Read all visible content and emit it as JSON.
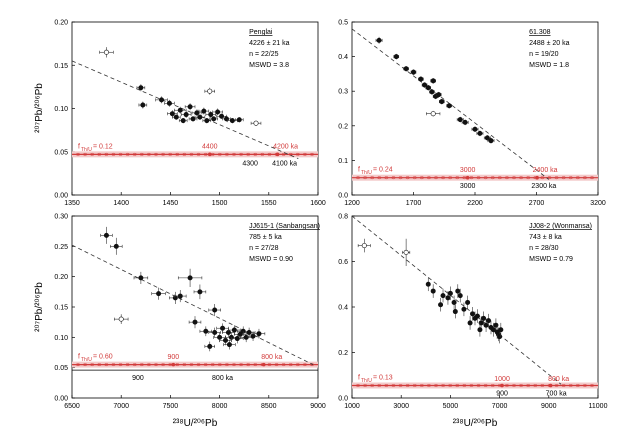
{
  "figure": {
    "ylabel": "²⁰⁷Pb/²⁰⁶Pb",
    "xlabel": "²³⁸U/²⁰⁶Pb",
    "colors": {
      "axis": "#000000",
      "data": "#111111",
      "hollow": "#ffffff",
      "concordia": "#d23b3b",
      "concordia_band": "#f3c9c9",
      "regression": "#333333"
    }
  },
  "chart_data": [
    {
      "id": "penglai",
      "type": "scatter",
      "xlim": [
        1350,
        1600
      ],
      "ylim": [
        0,
        0.2
      ],
      "xticks": [
        "1350",
        "1400",
        "1450",
        "1500",
        "1550",
        "1600"
      ],
      "yticks": [
        "0.00",
        "0.05",
        "0.10",
        "0.15",
        "0.20"
      ],
      "info": [
        "Penglai",
        "4226 ± 21 ka",
        "n = 22/25",
        "MSWD = 3.8"
      ],
      "f_label": "f",
      "f_sub": "Th/U",
      "f_value": "= 0.12",
      "red_labels": [
        {
          "text": "4400",
          "x": 1490,
          "y": 0.054
        },
        {
          "text": "4200 ka",
          "x": 1567,
          "y": 0.054
        }
      ],
      "black_labels": [
        {
          "text": "4300",
          "x": 1531,
          "y": 0.034
        },
        {
          "text": "4100 ka",
          "x": 1566,
          "y": 0.034
        }
      ],
      "concordia": {
        "y": 0.047,
        "x_start": 1350,
        "x_end": 1600
      },
      "regression": {
        "x1": 1350,
        "y1": 0.155,
        "x2": 1580,
        "y2": 0.042
      },
      "filled_points": [
        {
          "x": 1420,
          "y": 0.124,
          "ex": 4,
          "ey": 0.004
        },
        {
          "x": 1422,
          "y": 0.104,
          "ex": 4,
          "ey": 0.004
        },
        {
          "x": 1441,
          "y": 0.11,
          "ex": 6,
          "ey": 0.004
        },
        {
          "x": 1449,
          "y": 0.106,
          "ex": 5,
          "ey": 0.004
        },
        {
          "x": 1452,
          "y": 0.094,
          "ex": 5,
          "ey": 0.004
        },
        {
          "x": 1456,
          "y": 0.09,
          "ex": 4,
          "ey": 0.003
        },
        {
          "x": 1460,
          "y": 0.098,
          "ex": 6,
          "ey": 0.004
        },
        {
          "x": 1463,
          "y": 0.086,
          "ex": 4,
          "ey": 0.003
        },
        {
          "x": 1466,
          "y": 0.093,
          "ex": 5,
          "ey": 0.004
        },
        {
          "x": 1470,
          "y": 0.102,
          "ex": 5,
          "ey": 0.004
        },
        {
          "x": 1473,
          "y": 0.088,
          "ex": 4,
          "ey": 0.003
        },
        {
          "x": 1477,
          "y": 0.095,
          "ex": 5,
          "ey": 0.004
        },
        {
          "x": 1480,
          "y": 0.09,
          "ex": 5,
          "ey": 0.003
        },
        {
          "x": 1484,
          "y": 0.097,
          "ex": 5,
          "ey": 0.004
        },
        {
          "x": 1487,
          "y": 0.086,
          "ex": 4,
          "ey": 0.003
        },
        {
          "x": 1491,
          "y": 0.093,
          "ex": 5,
          "ey": 0.004
        },
        {
          "x": 1494,
          "y": 0.088,
          "ex": 4,
          "ey": 0.003
        },
        {
          "x": 1498,
          "y": 0.096,
          "ex": 5,
          "ey": 0.004
        },
        {
          "x": 1502,
          "y": 0.091,
          "ex": 5,
          "ey": 0.003
        },
        {
          "x": 1507,
          "y": 0.088,
          "ex": 4,
          "ey": 0.003
        },
        {
          "x": 1513,
          "y": 0.086,
          "ex": 5,
          "ey": 0.003
        },
        {
          "x": 1520,
          "y": 0.087,
          "ex": 4,
          "ey": 0.003
        }
      ],
      "hollow_points": [
        {
          "x": 1385,
          "y": 0.165,
          "ex": 7,
          "ey": 0.006
        },
        {
          "x": 1490,
          "y": 0.12,
          "ex": 5,
          "ey": 0.004
        },
        {
          "x": 1537,
          "y": 0.083,
          "ex": 5,
          "ey": 0.003
        }
      ]
    },
    {
      "id": "sixty-one-308",
      "type": "scatter",
      "xlim": [
        1200,
        3200
      ],
      "ylim": [
        0,
        0.5
      ],
      "xticks": [
        "1200",
        "1700",
        "2200",
        "2700",
        "3200"
      ],
      "yticks": [
        "0.0",
        "0.1",
        "0.2",
        "0.3",
        "0.4",
        "0.5"
      ],
      "info": [
        "61.308",
        "2488 ± 20 ka",
        "n = 19/20",
        "MSWD = 1.8"
      ],
      "f_label": "f",
      "f_sub": "Th/U",
      "f_value": "= 0.24",
      "red_labels": [
        {
          "text": "3000",
          "x": 2140,
          "y": 0.066
        },
        {
          "text": "2400 ka",
          "x": 2770,
          "y": 0.066
        }
      ],
      "black_labels": [
        {
          "text": "3000",
          "x": 2140,
          "y": 0.02
        },
        {
          "text": "2300 ka",
          "x": 2760,
          "y": 0.02
        }
      ],
      "concordia": {
        "y": 0.05,
        "x_start": 1200,
        "x_end": 3200
      },
      "regression": {
        "x1": 1200,
        "y1": 0.48,
        "x2": 2800,
        "y2": 0.045
      },
      "filled_points": [
        {
          "x": 1420,
          "y": 0.447,
          "ex": 25,
          "ey": 0.01
        },
        {
          "x": 1560,
          "y": 0.4,
          "ex": 20,
          "ey": 0.008
        },
        {
          "x": 1640,
          "y": 0.365,
          "ex": 20,
          "ey": 0.008
        },
        {
          "x": 1700,
          "y": 0.355,
          "ex": 20,
          "ey": 0.008
        },
        {
          "x": 1760,
          "y": 0.335,
          "ex": 20,
          "ey": 0.008
        },
        {
          "x": 1790,
          "y": 0.318,
          "ex": 20,
          "ey": 0.008
        },
        {
          "x": 1820,
          "y": 0.31,
          "ex": 20,
          "ey": 0.008
        },
        {
          "x": 1850,
          "y": 0.298,
          "ex": 20,
          "ey": 0.008
        },
        {
          "x": 1880,
          "y": 0.285,
          "ex": 20,
          "ey": 0.008
        },
        {
          "x": 1905,
          "y": 0.29,
          "ex": 20,
          "ey": 0.008
        },
        {
          "x": 1930,
          "y": 0.27,
          "ex": 20,
          "ey": 0.008
        },
        {
          "x": 1990,
          "y": 0.258,
          "ex": 20,
          "ey": 0.008
        },
        {
          "x": 2080,
          "y": 0.218,
          "ex": 25,
          "ey": 0.008
        },
        {
          "x": 2120,
          "y": 0.21,
          "ex": 25,
          "ey": 0.008
        },
        {
          "x": 2200,
          "y": 0.19,
          "ex": 25,
          "ey": 0.008
        },
        {
          "x": 2240,
          "y": 0.178,
          "ex": 25,
          "ey": 0.008
        },
        {
          "x": 2300,
          "y": 0.165,
          "ex": 25,
          "ey": 0.008
        },
        {
          "x": 2330,
          "y": 0.157,
          "ex": 25,
          "ey": 0.008
        },
        {
          "x": 1860,
          "y": 0.33,
          "ex": 20,
          "ey": 0.008
        }
      ],
      "hollow_points": [
        {
          "x": 1860,
          "y": 0.235,
          "ex": 55,
          "ey": 0.008
        }
      ]
    },
    {
      "id": "jj615-1",
      "type": "scatter",
      "xlim": [
        6500,
        9000
      ],
      "ylim": [
        0,
        0.3
      ],
      "xticks": [
        "6500",
        "7000",
        "7500",
        "8000",
        "8500",
        "9000"
      ],
      "yticks": [
        "0.00",
        "0.05",
        "0.10",
        "0.15",
        "0.20",
        "0.25",
        "0.30"
      ],
      "info": [
        "JJ615-1 (Sanbangsan)",
        "785 ± 5 ka",
        "n = 27/28",
        "MSWD = 0.90"
      ],
      "f_label": "f",
      "f_sub": "Th/U",
      "f_value": "= 0.60",
      "red_labels": [
        {
          "text": "900",
          "x": 7530,
          "y": 0.064
        },
        {
          "text": "800 ka",
          "x": 8530,
          "y": 0.064
        }
      ],
      "black_labels": [
        {
          "text": "900",
          "x": 7170,
          "y": 0.03
        },
        {
          "text": "800 ka",
          "x": 8030,
          "y": 0.03
        }
      ],
      "concordia": {
        "y": 0.055,
        "x_start": 6500,
        "x_end": 9000
      },
      "concordia_black": {
        "y": 0.046,
        "x_start": 6500,
        "x_end": 9000
      },
      "regression": {
        "x1": 6500,
        "y1": 0.252,
        "x2": 8950,
        "y2": 0.055
      },
      "filled_points": [
        {
          "x": 6850,
          "y": 0.268,
          "ex": 60,
          "ey": 0.014
        },
        {
          "x": 6950,
          "y": 0.25,
          "ex": 60,
          "ey": 0.014
        },
        {
          "x": 7200,
          "y": 0.198,
          "ex": 70,
          "ey": 0.01
        },
        {
          "x": 7380,
          "y": 0.172,
          "ex": 70,
          "ey": 0.01
        },
        {
          "x": 7550,
          "y": 0.165,
          "ex": 60,
          "ey": 0.01
        },
        {
          "x": 7600,
          "y": 0.168,
          "ex": 60,
          "ey": 0.01
        },
        {
          "x": 7700,
          "y": 0.198,
          "ex": 120,
          "ey": 0.015
        },
        {
          "x": 7750,
          "y": 0.125,
          "ex": 60,
          "ey": 0.01
        },
        {
          "x": 7800,
          "y": 0.175,
          "ex": 60,
          "ey": 0.012
        },
        {
          "x": 7860,
          "y": 0.11,
          "ex": 60,
          "ey": 0.008
        },
        {
          "x": 7900,
          "y": 0.085,
          "ex": 50,
          "ey": 0.008
        },
        {
          "x": 7950,
          "y": 0.108,
          "ex": 60,
          "ey": 0.008
        },
        {
          "x": 8000,
          "y": 0.1,
          "ex": 60,
          "ey": 0.008
        },
        {
          "x": 8030,
          "y": 0.115,
          "ex": 60,
          "ey": 0.008
        },
        {
          "x": 8060,
          "y": 0.095,
          "ex": 60,
          "ey": 0.008
        },
        {
          "x": 8090,
          "y": 0.108,
          "ex": 60,
          "ey": 0.008
        },
        {
          "x": 8120,
          "y": 0.1,
          "ex": 60,
          "ey": 0.008
        },
        {
          "x": 8150,
          "y": 0.112,
          "ex": 60,
          "ey": 0.008
        },
        {
          "x": 8180,
          "y": 0.098,
          "ex": 60,
          "ey": 0.008
        },
        {
          "x": 8210,
          "y": 0.105,
          "ex": 60,
          "ey": 0.008
        },
        {
          "x": 8240,
          "y": 0.11,
          "ex": 60,
          "ey": 0.008
        },
        {
          "x": 8270,
          "y": 0.1,
          "ex": 60,
          "ey": 0.008
        },
        {
          "x": 8300,
          "y": 0.108,
          "ex": 60,
          "ey": 0.008
        },
        {
          "x": 8340,
          "y": 0.102,
          "ex": 60,
          "ey": 0.008
        },
        {
          "x": 8400,
          "y": 0.106,
          "ex": 60,
          "ey": 0.008
        },
        {
          "x": 8100,
          "y": 0.088,
          "ex": 60,
          "ey": 0.008
        },
        {
          "x": 7950,
          "y": 0.145,
          "ex": 60,
          "ey": 0.01
        }
      ],
      "hollow_points": [
        {
          "x": 7000,
          "y": 0.13,
          "ex": 70,
          "ey": 0.008
        }
      ]
    },
    {
      "id": "jj08-2",
      "type": "scatter",
      "xlim": [
        1000,
        11000
      ],
      "ylim": [
        0,
        0.8
      ],
      "xticks": [
        "1000",
        "3000",
        "5000",
        "7000",
        "9000",
        "11000"
      ],
      "yticks": [
        "0.0",
        "0.2",
        "0.4",
        "0.6",
        "0.8"
      ],
      "info": [
        "JJ08-2 (Wonmansa)",
        "743 ± 8 ka",
        "n = 28/30",
        "MSWD = 0.79"
      ],
      "f_label": "f",
      "f_sub": "Th/U",
      "f_value": "= 0.13",
      "red_labels": [
        {
          "text": "1000",
          "x": 7100,
          "y": 0.075
        },
        {
          "text": "800 ka",
          "x": 9400,
          "y": 0.075
        }
      ],
      "black_labels": [
        {
          "text": "900",
          "x": 7100,
          "y": 0.01
        },
        {
          "text": "700 ka",
          "x": 9300,
          "y": 0.01
        }
      ],
      "concordia": {
        "y": 0.055,
        "x_start": 1000,
        "x_end": 11000
      },
      "regression": {
        "x1": 1000,
        "y1": 0.8,
        "x2": 9500,
        "y2": 0.06
      },
      "filled_points": [
        {
          "x": 4100,
          "y": 0.5,
          "ex": 60,
          "ey": 0.03
        },
        {
          "x": 4300,
          "y": 0.47,
          "ex": 60,
          "ey": 0.03
        },
        {
          "x": 4700,
          "y": 0.45,
          "ex": 60,
          "ey": 0.03
        },
        {
          "x": 4900,
          "y": 0.44,
          "ex": 60,
          "ey": 0.03
        },
        {
          "x": 5000,
          "y": 0.46,
          "ex": 60,
          "ey": 0.03
        },
        {
          "x": 5150,
          "y": 0.42,
          "ex": 60,
          "ey": 0.03
        },
        {
          "x": 5300,
          "y": 0.47,
          "ex": 60,
          "ey": 0.03
        },
        {
          "x": 5400,
          "y": 0.45,
          "ex": 60,
          "ey": 0.03
        },
        {
          "x": 5550,
          "y": 0.39,
          "ex": 60,
          "ey": 0.03
        },
        {
          "x": 5700,
          "y": 0.42,
          "ex": 60,
          "ey": 0.03
        },
        {
          "x": 5900,
          "y": 0.37,
          "ex": 60,
          "ey": 0.03
        },
        {
          "x": 6000,
          "y": 0.35,
          "ex": 60,
          "ey": 0.03
        },
        {
          "x": 6100,
          "y": 0.36,
          "ex": 60,
          "ey": 0.03
        },
        {
          "x": 6250,
          "y": 0.33,
          "ex": 60,
          "ey": 0.03
        },
        {
          "x": 6350,
          "y": 0.35,
          "ex": 60,
          "ey": 0.03
        },
        {
          "x": 6450,
          "y": 0.32,
          "ex": 60,
          "ey": 0.03
        },
        {
          "x": 6550,
          "y": 0.34,
          "ex": 60,
          "ey": 0.03
        },
        {
          "x": 6650,
          "y": 0.31,
          "ex": 60,
          "ey": 0.03
        },
        {
          "x": 6750,
          "y": 0.3,
          "ex": 60,
          "ey": 0.03
        },
        {
          "x": 6850,
          "y": 0.32,
          "ex": 60,
          "ey": 0.03
        },
        {
          "x": 6950,
          "y": 0.28,
          "ex": 60,
          "ey": 0.03
        },
        {
          "x": 7000,
          "y": 0.27,
          "ex": 60,
          "ey": 0.03
        },
        {
          "x": 5200,
          "y": 0.38,
          "ex": 60,
          "ey": 0.03
        },
        {
          "x": 5800,
          "y": 0.33,
          "ex": 60,
          "ey": 0.03
        },
        {
          "x": 6200,
          "y": 0.3,
          "ex": 60,
          "ey": 0.03
        },
        {
          "x": 4600,
          "y": 0.41,
          "ex": 60,
          "ey": 0.03
        },
        {
          "x": 6900,
          "y": 0.29,
          "ex": 60,
          "ey": 0.03
        },
        {
          "x": 7050,
          "y": 0.3,
          "ex": 60,
          "ey": 0.03
        }
      ],
      "hollow_points": [
        {
          "x": 1500,
          "y": 0.67,
          "ex": 250,
          "ey": 0.03
        },
        {
          "x": 3200,
          "y": 0.64,
          "ex": 150,
          "ey": 0.06
        }
      ]
    }
  ]
}
